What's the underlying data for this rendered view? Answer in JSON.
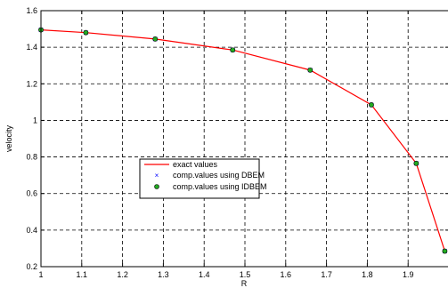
{
  "chart_data": {
    "type": "line",
    "title": "",
    "xlabel": "R",
    "ylabel": "velocity",
    "xlim": [
      1,
      2
    ],
    "ylim": [
      0.2,
      1.6
    ],
    "x_ticks": [
      "1",
      "1.1",
      "1.2",
      "1.3",
      "1.4",
      "1.5",
      "1.6",
      "1.7",
      "1.8",
      "1.9"
    ],
    "x_tick_values": [
      1,
      1.1,
      1.2,
      1.3,
      1.4,
      1.5,
      1.6,
      1.7,
      1.8,
      1.9
    ],
    "y_ticks": [
      "0.2",
      "0.4",
      "0.6",
      "0.8",
      "1",
      "1.2",
      "1.4",
      "1.6"
    ],
    "y_tick_values": [
      0.2,
      0.4,
      0.6,
      0.8,
      1.0,
      1.2,
      1.4,
      1.6
    ],
    "grid": true,
    "legend_position": "center-left",
    "series": [
      {
        "name": "exact values",
        "style": "line",
        "color": "#ff0000",
        "x": [
          1.0,
          1.11,
          1.28,
          1.47,
          1.66,
          1.81,
          1.92,
          1.99
        ],
        "y": [
          1.495,
          1.48,
          1.445,
          1.385,
          1.275,
          1.085,
          0.765,
          0.285
        ]
      },
      {
        "name": "comp.values using DBEM",
        "style": "x-marker",
        "color": "#0000ff",
        "x": [
          1.0,
          1.11,
          1.28,
          1.47,
          1.66,
          1.81,
          1.92,
          1.99
        ],
        "y": [
          1.495,
          1.48,
          1.445,
          1.385,
          1.275,
          1.085,
          0.765,
          0.285
        ]
      },
      {
        "name": "comp.values using IDBEM",
        "style": "circle-marker",
        "color": "#22aa22",
        "x": [
          1.0,
          1.11,
          1.28,
          1.47,
          1.66,
          1.81,
          1.92,
          1.99
        ],
        "y": [
          1.495,
          1.48,
          1.445,
          1.385,
          1.275,
          1.085,
          0.765,
          0.285
        ]
      }
    ]
  }
}
